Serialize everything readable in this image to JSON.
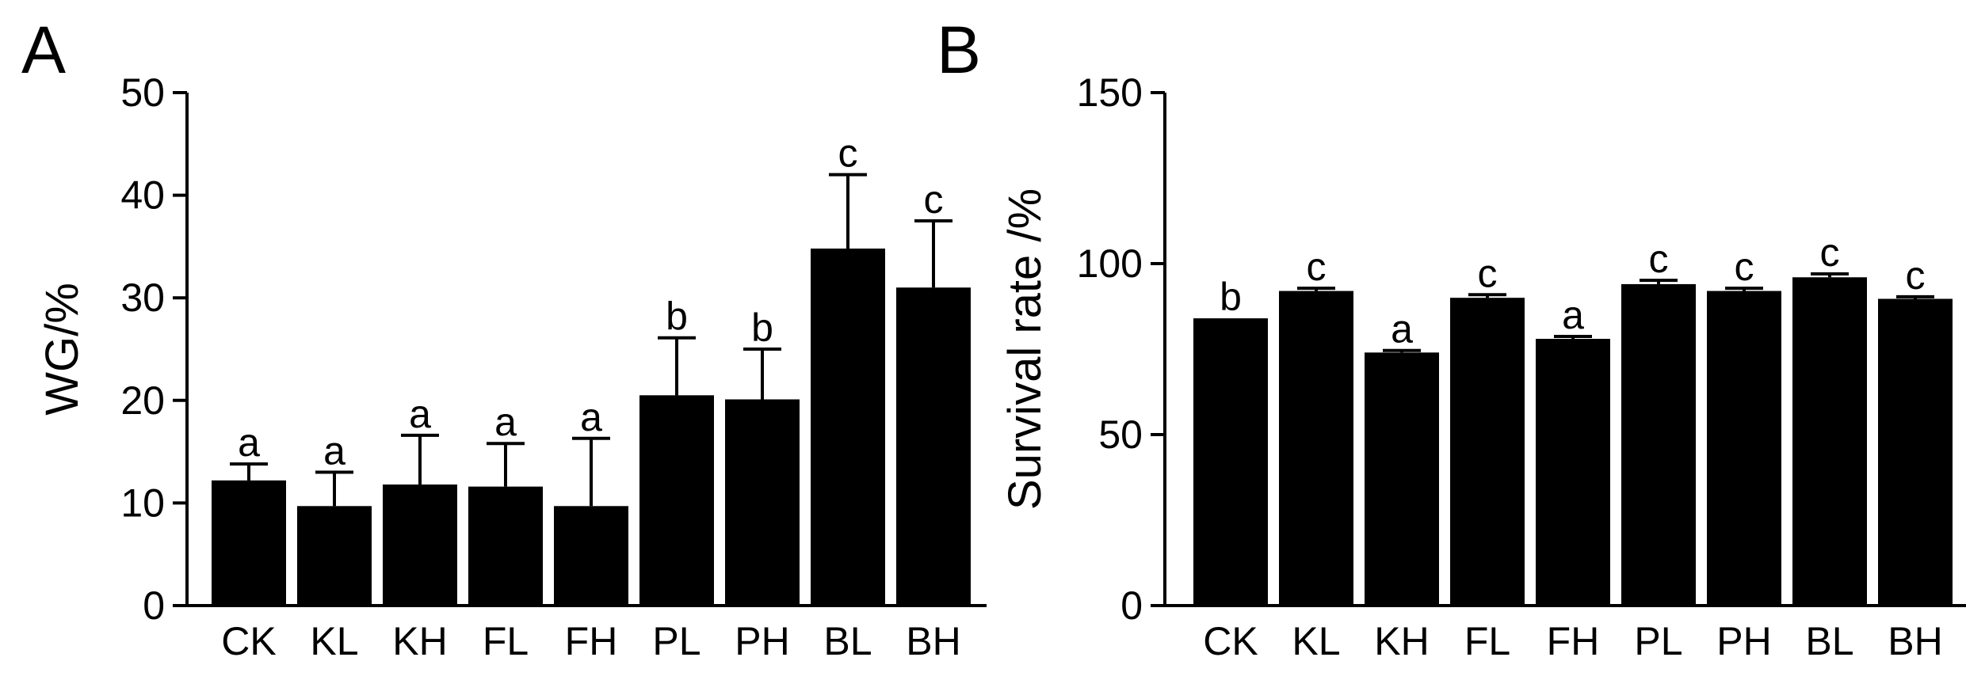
{
  "chart_data": [
    {
      "type": "bar",
      "panel_label": "A",
      "title": "",
      "xlabel": "",
      "ylabel": "WG/%",
      "ylim": [
        0,
        50
      ],
      "yticks": [
        "0",
        "10",
        "20",
        "30",
        "40",
        "50"
      ],
      "ytick_values": [
        0,
        10,
        20,
        30,
        40,
        50
      ],
      "categories": [
        "CK",
        "KL",
        "KH",
        "FL",
        "FH",
        "PL",
        "PH",
        "BL",
        "BH"
      ],
      "values": [
        12.2,
        9.7,
        11.8,
        11.6,
        9.7,
        20.5,
        20.1,
        34.8,
        31.0
      ],
      "errors": [
        1.6,
        3.3,
        4.8,
        4.2,
        6.6,
        5.6,
        4.9,
        7.2,
        6.5
      ],
      "significance": [
        "a",
        "a",
        "a",
        "a",
        "a",
        "b",
        "b",
        "c",
        "c"
      ],
      "bar_color": "#000000"
    },
    {
      "type": "bar",
      "panel_label": "B",
      "title": "",
      "xlabel": "",
      "ylabel": "Survival rate /%",
      "ylim": [
        0,
        150
      ],
      "yticks": [
        "0",
        "50",
        "100",
        "150"
      ],
      "ytick_values": [
        0,
        50,
        100,
        150
      ],
      "categories": [
        "CK",
        "KL",
        "KH",
        "FL",
        "FH",
        "PL",
        "PH",
        "BL",
        "BH"
      ],
      "values": [
        84.0,
        92.0,
        74.0,
        90.0,
        78.0,
        94.0,
        92.0,
        96.0,
        89.7
      ],
      "errors": [
        0.0,
        0.8,
        0.6,
        0.9,
        0.7,
        1.1,
        0.8,
        1.0,
        0.6
      ],
      "significance": [
        "b",
        "c",
        "a",
        "c",
        "a",
        "c",
        "c",
        "c",
        "c"
      ],
      "bar_color": "#000000"
    }
  ]
}
